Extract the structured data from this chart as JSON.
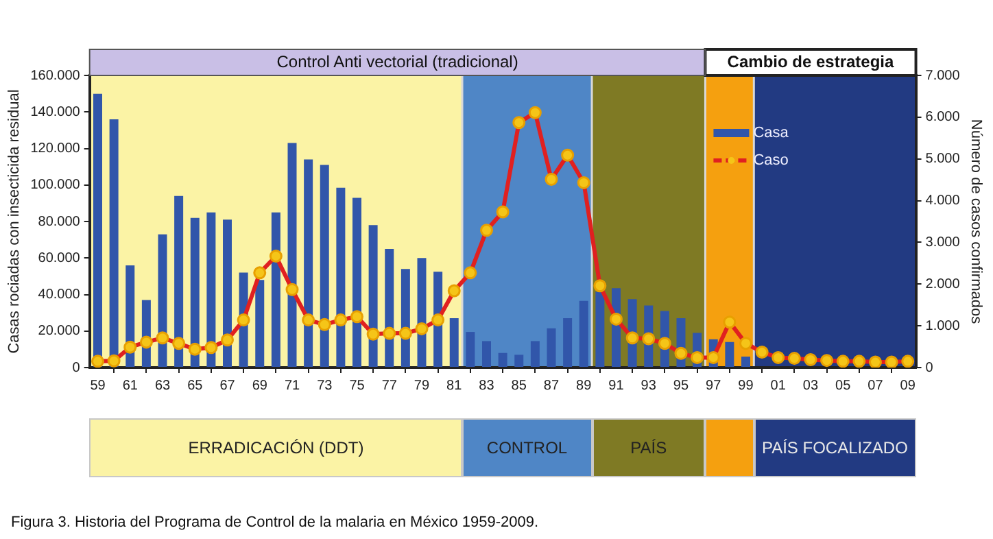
{
  "chart_data": {
    "type": "bar",
    "ylabel": "Casas rociadas con insecticida residual",
    "y2label": "Número de casos confirmados",
    "x": [
      1959,
      1960,
      1961,
      1962,
      1963,
      1964,
      1965,
      1966,
      1967,
      1968,
      1969,
      1970,
      1971,
      1972,
      1973,
      1974,
      1975,
      1976,
      1977,
      1978,
      1979,
      1980,
      1981,
      1982,
      1983,
      1984,
      1985,
      1986,
      1987,
      1988,
      1989,
      1990,
      1991,
      1992,
      1993,
      1994,
      1995,
      1996,
      1997,
      1998,
      1999,
      2000,
      2001,
      2002,
      2003,
      2004,
      2005,
      2006,
      2007,
      2008,
      2009
    ],
    "series": [
      {
        "name": "Casa",
        "color": "#3156aa",
        "values": [
          150000,
          136000,
          56000,
          37000,
          73000,
          94000,
          82000,
          85000,
          81000,
          52000,
          48000,
          85000,
          123000,
          114000,
          111000,
          98500,
          93000,
          78000,
          65000,
          54000,
          60000,
          52500,
          27000,
          19500,
          14500,
          8000,
          7000,
          14500,
          21500,
          27000,
          36500,
          41500,
          43500,
          37500,
          34000,
          31000,
          27000,
          19000,
          15500,
          14000,
          6000,
          null,
          null,
          null,
          null,
          null,
          null,
          null,
          null,
          null,
          null
        ]
      },
      {
        "name": "Caso",
        "type": "line",
        "axis": "y2",
        "color": "#e02020",
        "values": [
          150,
          160,
          490,
          610,
          710,
          580,
          440,
          480,
          660,
          1140,
          2270,
          2670,
          1870,
          1140,
          1030,
          1140,
          1220,
          800,
          820,
          820,
          930,
          1140,
          1840,
          2270,
          3290,
          3730,
          5870,
          6110,
          4510,
          5090,
          4430,
          1960,
          1160,
          710,
          690,
          580,
          340,
          240,
          240,
          1090,
          580,
          370,
          240,
          220,
          190,
          170,
          150,
          150,
          130,
          130,
          150
        ]
      }
    ],
    "xlim": [
      1958.5,
      2009.5
    ],
    "xticks": [
      {
        "value": 1959,
        "label": "59"
      },
      {
        "value": 1961,
        "label": "61"
      },
      {
        "value": 1963,
        "label": "63"
      },
      {
        "value": 1965,
        "label": "65"
      },
      {
        "value": 1967,
        "label": "67"
      },
      {
        "value": 1969,
        "label": "69"
      },
      {
        "value": 1971,
        "label": "71"
      },
      {
        "value": 1973,
        "label": "73"
      },
      {
        "value": 1975,
        "label": "75"
      },
      {
        "value": 1977,
        "label": "77"
      },
      {
        "value": 1979,
        "label": "79"
      },
      {
        "value": 1981,
        "label": "81"
      },
      {
        "value": 1983,
        "label": "83"
      },
      {
        "value": 1985,
        "label": "85"
      },
      {
        "value": 1987,
        "label": "87"
      },
      {
        "value": 1989,
        "label": "89"
      },
      {
        "value": 1991,
        "label": "91"
      },
      {
        "value": 1993,
        "label": "93"
      },
      {
        "value": 1995,
        "label": "95"
      },
      {
        "value": 1997,
        "label": "97"
      },
      {
        "value": 1999,
        "label": "99"
      },
      {
        "value": 2001,
        "label": "01"
      },
      {
        "value": 2003,
        "label": "03"
      },
      {
        "value": 2005,
        "label": "05"
      },
      {
        "value": 2007,
        "label": "07"
      },
      {
        "value": 2009,
        "label": "09"
      }
    ],
    "ylim": [
      0,
      160000
    ],
    "yticks": [
      0,
      {
        "value": 20000,
        "label": "20.000"
      },
      {
        "value": 40000,
        "label": "40.000"
      },
      {
        "value": 60000,
        "label": "60.000"
      },
      {
        "value": 80000,
        "label": "80.000"
      },
      {
        "value": 100000,
        "label": "100.000"
      },
      {
        "value": 120000,
        "label": "120.000"
      },
      {
        "value": 140000,
        "label": "140.000"
      },
      {
        "value": 160000,
        "label": "160.000"
      }
    ],
    "y2lim": [
      0,
      7000
    ],
    "y2ticks": [
      0,
      {
        "value": 1000,
        "label": "1.000"
      },
      {
        "value": 2000,
        "label": "2.000"
      },
      {
        "value": 3000,
        "label": "3.000"
      },
      {
        "value": 4000,
        "label": "4.000"
      },
      {
        "value": 5000,
        "label": "5.000"
      },
      {
        "value": 6000,
        "label": "6.000"
      },
      {
        "value": 7000,
        "label": "7.000"
      }
    ],
    "bands": [
      {
        "axis": "x",
        "from": 1958.5,
        "to": 1981.5,
        "color": "#fbf3a5"
      },
      {
        "axis": "x",
        "from": 1981.5,
        "to": 1989.5,
        "color": "#4f86c6"
      },
      {
        "axis": "x",
        "from": 1989.5,
        "to": 1996.5,
        "color": "#7f7a24"
      },
      {
        "axis": "x",
        "from": 1996.5,
        "to": 1999.5,
        "color": "#f5a00f"
      },
      {
        "axis": "x",
        "from": 1999.5,
        "to": 2009.5,
        "color": "#223a82"
      }
    ],
    "annotations": [
      "Control Anti vectorial (tradicional)",
      "Cambio de estrategia",
      "Figura 3. Historia del Programa de Control de la malaria en México 1959-2009.",
      "ERRADICACIÓN (DDT)",
      "CONTROL",
      "PAÍS",
      "PAÍS FOCALIZADO"
    ],
    "legend": "top right",
    "marker": "circle",
    "line_style": "solid",
    "grid": false
  }
}
